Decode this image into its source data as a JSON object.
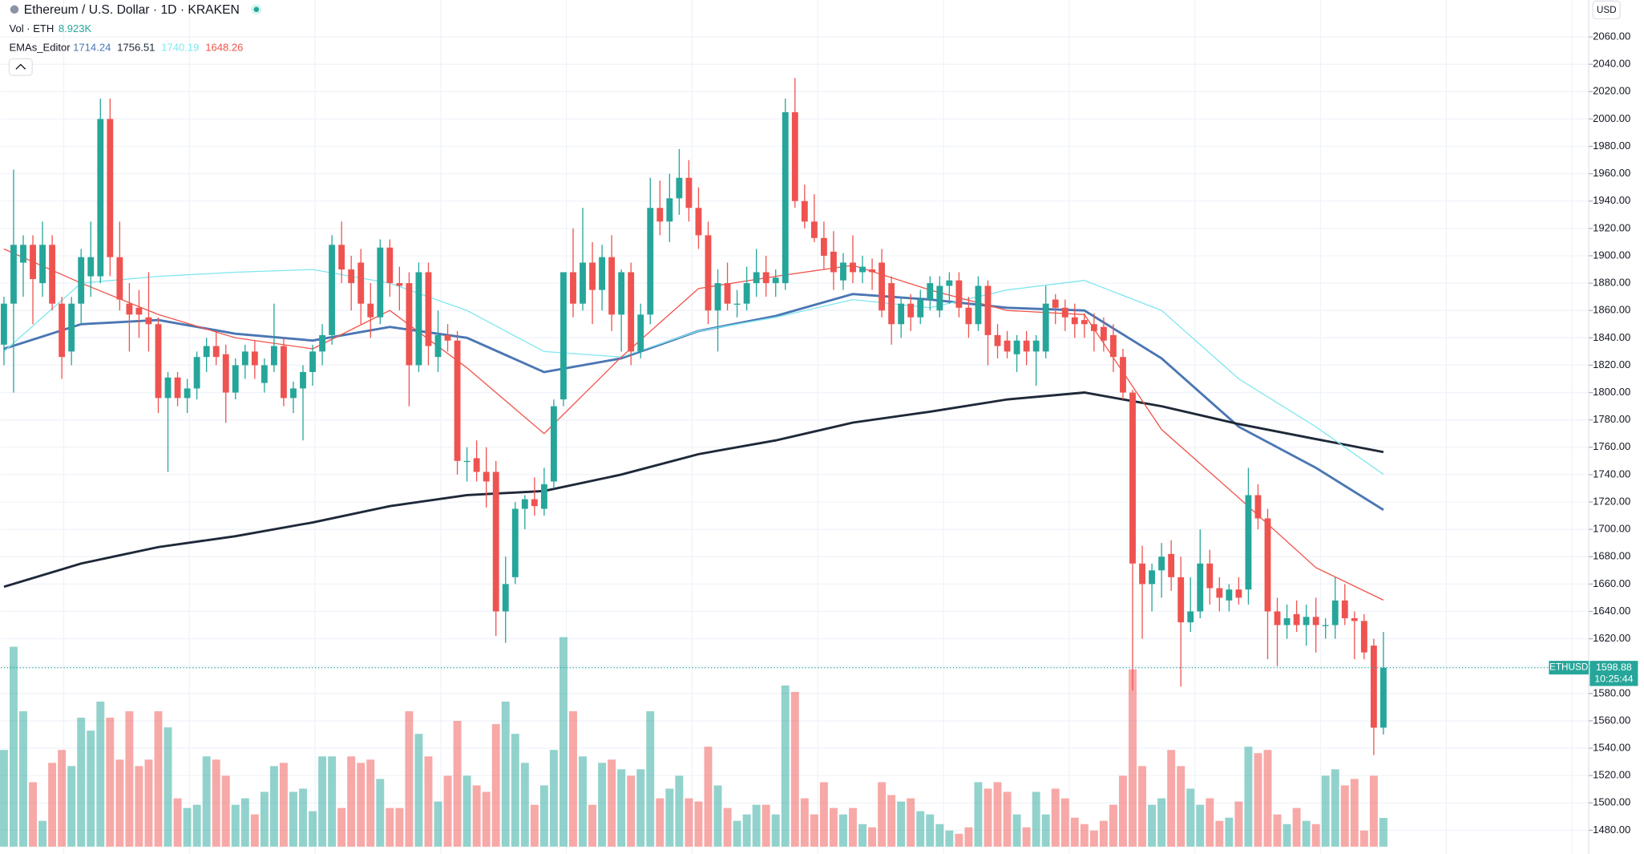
{
  "chart_data": {
    "type": "candlestick",
    "title": "Ethereum / U.S. Dollar · 1D · KRAKEN",
    "volume_name": "Vol · ETH",
    "volume_label": "8.923K",
    "indicator_name": "EMAs_Editor",
    "currency": "USD",
    "symbol": "ETHUSD",
    "countdown": "10:25:44",
    "up_color": "#26a69a",
    "down_color": "#ef5350",
    "grid": true,
    "ylim": [
      1468,
      2087
    ],
    "yticks": [
      {
        "value": 1480,
        "label": "1480.00"
      },
      {
        "value": 1500,
        "label": "1500.00"
      },
      {
        "value": 1520,
        "label": "1520.00"
      },
      {
        "value": 1540,
        "label": "1540.00"
      },
      {
        "value": 1560,
        "label": "1560.00"
      },
      {
        "value": 1580,
        "label": "1580.00"
      },
      {
        "value": 1600,
        "label": "1600.00"
      },
      {
        "value": 1620,
        "label": "1620.00"
      },
      {
        "value": 1640,
        "label": "1640.00"
      },
      {
        "value": 1660,
        "label": "1660.00"
      },
      {
        "value": 1680,
        "label": "1680.00"
      },
      {
        "value": 1700,
        "label": "1700.00"
      },
      {
        "value": 1720,
        "label": "1720.00"
      },
      {
        "value": 1740,
        "label": "1740.00"
      },
      {
        "value": 1760,
        "label": "1760.00"
      },
      {
        "value": 1780,
        "label": "1780.00"
      },
      {
        "value": 1800,
        "label": "1800.00"
      },
      {
        "value": 1820,
        "label": "1820.00"
      },
      {
        "value": 1840,
        "label": "1840.00"
      },
      {
        "value": 1860,
        "label": "1860.00"
      },
      {
        "value": 1880,
        "label": "1880.00"
      },
      {
        "value": 1900,
        "label": "1900.00"
      },
      {
        "value": 1920,
        "label": "1920.00"
      },
      {
        "value": 1940,
        "label": "1940.00"
      },
      {
        "value": 1960,
        "label": "1960.00"
      },
      {
        "value": 1980,
        "label": "1980.00"
      },
      {
        "value": 2000,
        "label": "2000.00"
      },
      {
        "value": 2020,
        "label": "2020.00"
      },
      {
        "value": 2040,
        "label": "2040.00"
      },
      {
        "value": 2060,
        "label": "2060.00"
      }
    ],
    "open": [
      1835,
      1865,
      1895,
      1908,
      1880,
      1908,
      1865,
      1830,
      1865,
      1885,
      1885,
      2000,
      1899,
      1865,
      1862,
      1855,
      1850,
      1796,
      1811,
      1796,
      1803,
      1826,
      1834,
      1828,
      1800,
      1820,
      1830,
      1807,
      1820,
      1834,
      1796,
      1803,
      1815,
      1830,
      1842,
      1908,
      1890,
      1895,
      1865,
      1855,
      1906,
      1880,
      1880,
      1820,
      1888,
      1826,
      1842,
      1838,
      1750,
      1752,
      1742,
      1742,
      1640,
      1665,
      1715,
      1722,
      1715,
      1735,
      1795,
      1888,
      1865,
      1895,
      1875,
      1899,
      1857,
      1888,
      1830,
      1857,
      1935,
      1925,
      1942,
      1957,
      1935,
      1915,
      1860,
      1880,
      1865,
      1865,
      1880,
      1888,
      1880,
      1880,
      2005,
      1940,
      1925,
      1913,
      1903,
      1882,
      1895,
      1888,
      1890,
      1895,
      1880,
      1850,
      1865,
      1855,
      1868,
      1860,
      1878,
      1882,
      1862,
      1850,
      1878,
      1842,
      1838,
      1828,
      1838,
      1830,
      1830,
      1868,
      1862,
      1855,
      1853,
      1850,
      1848,
      1842,
      1826,
      1800,
      1675,
      1660,
      1670,
      1682,
      1665,
      1632,
      1640,
      1675,
      1657,
      1648,
      1656,
      1656,
      1725,
      1708,
      1640,
      1630,
      1638,
      1630,
      1636,
      1630,
      1630,
      1648,
      1635,
      1633,
      1615,
      1555
    ],
    "high": [
      1870,
      1963,
      1915,
      1915,
      1925,
      1915,
      1870,
      1870,
      1905,
      1925,
      2015,
      2015,
      1925,
      1880,
      1875,
      1888,
      1855,
      1815,
      1815,
      1810,
      1830,
      1840,
      1845,
      1835,
      1825,
      1835,
      1838,
      1825,
      1865,
      1840,
      1808,
      1820,
      1835,
      1850,
      1915,
      1925,
      1900,
      1905,
      1880,
      1912,
      1912,
      1892,
      1888,
      1895,
      1895,
      1860,
      1850,
      1845,
      1760,
      1765,
      1760,
      1750,
      1680,
      1720,
      1725,
      1738,
      1745,
      1795,
      1888,
      1920,
      1935,
      1910,
      1908,
      1915,
      1890,
      1895,
      1865,
      1957,
      1955,
      1960,
      1978,
      1970,
      1950,
      1925,
      1890,
      1895,
      1875,
      1892,
      1905,
      1900,
      1890,
      2015,
      2030,
      1952,
      1945,
      1925,
      1918,
      1902,
      1915,
      1900,
      1898,
      1905,
      1885,
      1870,
      1872,
      1875,
      1885,
      1885,
      1888,
      1888,
      1870,
      1885,
      1882,
      1850,
      1845,
      1842,
      1845,
      1842,
      1878,
      1872,
      1868,
      1865,
      1858,
      1858,
      1855,
      1850,
      1832,
      1802,
      1688,
      1675,
      1690,
      1692,
      1680,
      1665,
      1700,
      1685,
      1665,
      1660,
      1665,
      1745,
      1733,
      1715,
      1650,
      1645,
      1648,
      1645,
      1650,
      1635,
      1665,
      1660,
      1640,
      1638,
      1620,
      1625
    ],
    "low": [
      1820,
      1800,
      1870,
      1850,
      1870,
      1860,
      1810,
      1820,
      1850,
      1870,
      1880,
      1885,
      1860,
      1830,
      1840,
      1830,
      1785,
      1742,
      1790,
      1785,
      1795,
      1815,
      1820,
      1778,
      1795,
      1810,
      1810,
      1800,
      1815,
      1790,
      1785,
      1765,
      1805,
      1820,
      1835,
      1880,
      1860,
      1850,
      1840,
      1850,
      1870,
      1860,
      1790,
      1815,
      1820,
      1815,
      1830,
      1740,
      1735,
      1735,
      1716,
      1622,
      1617,
      1660,
      1700,
      1710,
      1710,
      1730,
      1790,
      1855,
      1860,
      1850,
      1860,
      1845,
      1830,
      1820,
      1825,
      1850,
      1915,
      1910,
      1930,
      1925,
      1905,
      1850,
      1830,
      1860,
      1855,
      1860,
      1870,
      1870,
      1870,
      1875,
      1935,
      1920,
      1910,
      1890,
      1875,
      1875,
      1880,
      1880,
      1875,
      1855,
      1835,
      1840,
      1845,
      1850,
      1860,
      1855,
      1865,
      1855,
      1840,
      1845,
      1820,
      1825,
      1825,
      1815,
      1820,
      1805,
      1825,
      1850,
      1845,
      1840,
      1840,
      1830,
      1830,
      1815,
      1795,
      1582,
      1620,
      1640,
      1650,
      1655,
      1585,
      1625,
      1635,
      1645,
      1640,
      1640,
      1645,
      1645,
      1700,
      1605,
      1600,
      1620,
      1625,
      1615,
      1610,
      1620,
      1620,
      1630,
      1605,
      1605,
      1535,
      1550
    ],
    "close": [
      1865,
      1908,
      1908,
      1883,
      1908,
      1865,
      1826,
      1865,
      1899,
      1899,
      2000,
      1899,
      1868,
      1857,
      1857,
      1850,
      1796,
      1811,
      1796,
      1803,
      1826,
      1834,
      1826,
      1800,
      1820,
      1830,
      1820,
      1820,
      1834,
      1796,
      1803,
      1815,
      1830,
      1842,
      1908,
      1890,
      1880,
      1865,
      1855,
      1906,
      1880,
      1878,
      1820,
      1888,
      1834,
      1842,
      1838,
      1750,
      1750,
      1742,
      1735,
      1640,
      1660,
      1715,
      1722,
      1717,
      1733,
      1790,
      1888,
      1865,
      1895,
      1875,
      1899,
      1857,
      1888,
      1830,
      1857,
      1935,
      1925,
      1942,
      1957,
      1935,
      1915,
      1860,
      1880,
      1865,
      1865,
      1880,
      1888,
      1880,
      1884,
      2005,
      1940,
      1925,
      1913,
      1900,
      1888,
      1895,
      1888,
      1892,
      1888,
      1860,
      1850,
      1865,
      1855,
      1868,
      1880,
      1878,
      1882,
      1862,
      1850,
      1878,
      1842,
      1834,
      1830,
      1838,
      1830,
      1838,
      1865,
      1862,
      1855,
      1850,
      1850,
      1845,
      1838,
      1826,
      1800,
      1675,
      1660,
      1670,
      1680,
      1665,
      1632,
      1640,
      1675,
      1657,
      1650,
      1656,
      1650,
      1725,
      1708,
      1640,
      1630,
      1635,
      1630,
      1636,
      1630,
      1630,
      1648,
      1635,
      1633,
      1610,
      1555,
      1598.88
    ],
    "volume": [
      30,
      62,
      42,
      20,
      8,
      26,
      30,
      25,
      40,
      36,
      45,
      40,
      27,
      42,
      25,
      27,
      42,
      37,
      15,
      12,
      13,
      28,
      27,
      22,
      13,
      15,
      10,
      17,
      25,
      26,
      17,
      18,
      11,
      28,
      28,
      12,
      28,
      26,
      27,
      21,
      12,
      12,
      42,
      35,
      28,
      14,
      22,
      39,
      22,
      19,
      17,
      38,
      45,
      35,
      26,
      13,
      19,
      30,
      65,
      42,
      28,
      13,
      26,
      27,
      24,
      22,
      24,
      42,
      15,
      18,
      22,
      15,
      14,
      31,
      19,
      12,
      8,
      10,
      13,
      13,
      10,
      50,
      48,
      15,
      10,
      20,
      12,
      10,
      12,
      7,
      6,
      20,
      16,
      14,
      15,
      11,
      10,
      7,
      5,
      4,
      6,
      20,
      18,
      20,
      17,
      10,
      6,
      17,
      10,
      18,
      15,
      9,
      7,
      5,
      8,
      13,
      22,
      55,
      25,
      13,
      15,
      30,
      25,
      18,
      13,
      15,
      8,
      9,
      14,
      31,
      29,
      30,
      10,
      7,
      12,
      8,
      7,
      22,
      24,
      19,
      21,
      5,
      22,
      8.923
    ],
    "emas": [
      {
        "color": "#4a76b3",
        "width": 2.2,
        "x": [
          0,
          8,
          16,
          24,
          32,
          40,
          48,
          56,
          64,
          72,
          80,
          88,
          96,
          104,
          112,
          120,
          128,
          136,
          143
        ],
        "values": [
          1832,
          1850,
          1853,
          1843,
          1838,
          1848,
          1840,
          1815,
          1825,
          1845,
          1856,
          1872,
          1868,
          1862,
          1860,
          1825,
          1775,
          1745,
          1714.24
        ]
      },
      {
        "color": "#1e2838",
        "width": 2.2,
        "x": [
          0,
          8,
          16,
          24,
          32,
          40,
          48,
          56,
          64,
          72,
          80,
          88,
          96,
          104,
          112,
          120,
          128,
          136,
          143
        ],
        "values": [
          1658,
          1675,
          1687,
          1695,
          1705,
          1717,
          1725,
          1728,
          1740,
          1755,
          1765,
          1778,
          1786,
          1795,
          1800,
          1790,
          1777,
          1766,
          1756.51
        ]
      },
      {
        "color": "#7fe6ef",
        "width": 1,
        "x": [
          0,
          8,
          16,
          24,
          32,
          40,
          48,
          56,
          64,
          72,
          80,
          88,
          96,
          104,
          112,
          120,
          128,
          136,
          143
        ],
        "values": [
          1830,
          1880,
          1885,
          1888,
          1890,
          1880,
          1860,
          1830,
          1826,
          1845,
          1855,
          1868,
          1862,
          1875,
          1882,
          1860,
          1810,
          1775,
          1740.19
        ]
      },
      {
        "color": "#f0544a",
        "width": 1,
        "x": [
          0,
          8,
          16,
          24,
          32,
          40,
          48,
          56,
          64,
          72,
          80,
          88,
          96,
          104,
          112,
          120,
          128,
          136,
          143
        ],
        "values": [
          1905,
          1880,
          1857,
          1840,
          1832,
          1860,
          1818,
          1770,
          1826,
          1876,
          1885,
          1893,
          1875,
          1860,
          1857,
          1773,
          1723,
          1672,
          1648.26
        ]
      }
    ]
  }
}
